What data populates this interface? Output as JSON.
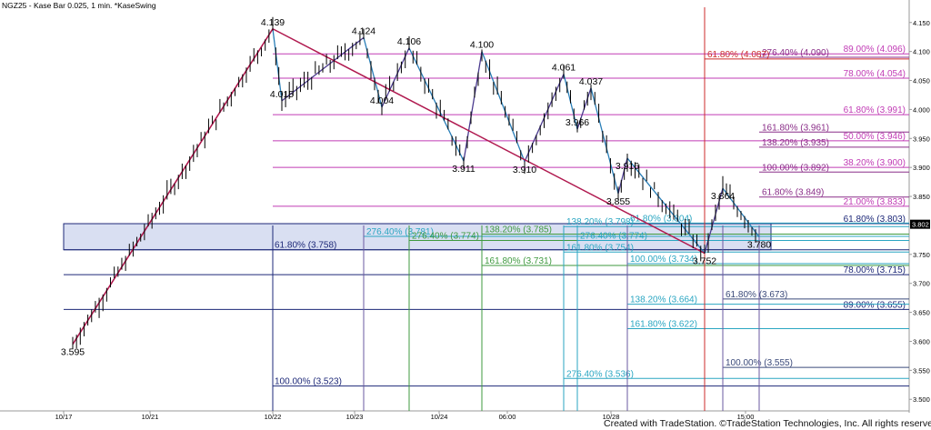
{
  "header": {
    "title": "NGZ25 - Kase Bar 0.025, 1 min. *KaseSwing"
  },
  "footer": {
    "credit": "Created with TradeStation. ©TradeStation Technologies, Inc. All rights reserved."
  },
  "colors": {
    "bar": "#000000",
    "swing_red": "#b0194f",
    "swing_blue": "#2a7fb8",
    "swing_purple": "#4b3b8f",
    "magenta": "#c13bb5",
    "green": "#3f9a3f",
    "teal": "#2aa6c2",
    "navy": "#1d2878",
    "red": "#cc2b2b",
    "zone_fill": "#d9dff2",
    "zone_stroke": "#1d2878",
    "last_price_tag": "#000000"
  },
  "chart_data": {
    "type": "ohlc",
    "instrument": "NGZ25",
    "y_axis_ticks": [
      "4.150",
      "4.100",
      "4.050",
      "4.000",
      "3.950",
      "3.900",
      "3.850",
      "3.802",
      "3.750",
      "3.700",
      "3.650",
      "3.600",
      "3.550",
      "3.500"
    ],
    "last_price": "3.802",
    "x_axis_ticks": [
      "10/17",
      "10/21",
      "10/22",
      "10/23",
      "10/24",
      "06:00",
      "10/28",
      "15:00"
    ],
    "swing_points": [
      {
        "value": "3.595",
        "t": 0.08
      },
      {
        "value": "4.139",
        "t": 0.3
      },
      {
        "value": "4.015",
        "t": 0.31
      },
      {
        "value": "4.124",
        "t": 0.4
      },
      {
        "value": "4.004",
        "t": 0.42
      },
      {
        "value": "4.106",
        "t": 0.45
      },
      {
        "value": "3.911",
        "t": 0.51
      },
      {
        "value": "4.100",
        "t": 0.53
      },
      {
        "value": "3.910",
        "t": 0.577
      },
      {
        "value": "4.061",
        "t": 0.62
      },
      {
        "value": "3.966",
        "t": 0.635
      },
      {
        "value": "4.037",
        "t": 0.65
      },
      {
        "value": "3.855",
        "t": 0.68
      },
      {
        "value": "3.916",
        "t": 0.69
      },
      {
        "value": "3.752",
        "t": 0.775
      },
      {
        "value": "3.864",
        "t": 0.795
      },
      {
        "value": "3.780",
        "t": 0.835
      }
    ],
    "fib_levels": [
      {
        "label": "89.00% (4.096)",
        "value": 4.096,
        "color": "magenta",
        "from_t": 0.3,
        "label_side": "right"
      },
      {
        "label": "78.00% (4.054)",
        "value": 4.054,
        "color": "magenta",
        "from_t": 0.3,
        "label_side": "right"
      },
      {
        "label": "61.80% (3.991)",
        "value": 3.991,
        "color": "magenta",
        "from_t": 0.3,
        "label_side": "right"
      },
      {
        "label": "50.00% (3.946)",
        "value": 3.946,
        "color": "magenta",
        "from_t": 0.3,
        "label_side": "right"
      },
      {
        "label": "38.20% (3.900)",
        "value": 3.9,
        "color": "magenta",
        "from_t": 0.3,
        "label_side": "right"
      },
      {
        "label": "21.00% (3.833)",
        "value": 3.833,
        "color": "magenta",
        "from_t": 0.3,
        "label_side": "right"
      },
      {
        "label": "276.40% (4.090)",
        "value": 4.09,
        "color": "purple",
        "from_t": 0.835,
        "label_side": "left"
      },
      {
        "label": "161.80% (3.961)",
        "value": 3.961,
        "color": "purple",
        "from_t": 0.835,
        "label_side": "left"
      },
      {
        "label": "138.20% (3.935)",
        "value": 3.935,
        "color": "purple",
        "from_t": 0.835,
        "label_side": "left"
      },
      {
        "label": "100.00% (3.892)",
        "value": 3.892,
        "color": "purple",
        "from_t": 0.835,
        "label_side": "left"
      },
      {
        "label": "61.80% (3.849)",
        "value": 3.849,
        "color": "purple",
        "from_t": 0.835,
        "label_side": "left"
      },
      {
        "label": "61.80% (4.087)",
        "value": 4.087,
        "color": "red",
        "from_t": 0.775,
        "label_side": "left"
      },
      {
        "label": "61.80% (3.803)",
        "value": 3.803,
        "color": "navy",
        "from_t": 0.3,
        "label_side": "right"
      },
      {
        "label": "78.00% (3.715)",
        "value": 3.715,
        "color": "navy",
        "from_t": 0.07,
        "label_side": "right"
      },
      {
        "label": "89.00% (3.655)",
        "value": 3.655,
        "color": "navy",
        "from_t": 0.07,
        "label_side": "right"
      },
      {
        "label": "61.80% (3.758)",
        "value": 3.758,
        "color": "navy",
        "from_t": 0.07,
        "label_side": "left_at_t",
        "label_t": 0.3
      },
      {
        "label": "100.00% (3.523)",
        "value": 3.523,
        "color": "navy",
        "from_t": 0.3,
        "label_side": "left_at_t",
        "label_t": 0.3
      },
      {
        "label": "61.80% (3.673)",
        "value": 3.673,
        "color": "slate",
        "from_t": 0.795,
        "label_side": "left"
      },
      {
        "label": "100.00% (3.555)",
        "value": 3.555,
        "color": "slate",
        "from_t": 0.795,
        "label_side": "left"
      },
      {
        "label": "276.40% (3.781)",
        "value": 3.781,
        "color": "teal",
        "from_t": 0.4,
        "label_side": "left"
      },
      {
        "label": "276.40% (3.774)",
        "value": 3.774,
        "color": "green",
        "from_t": 0.45,
        "label_side": "left"
      },
      {
        "label": "138.20% (3.785)",
        "value": 3.785,
        "color": "green",
        "from_t": 0.53,
        "label_side": "left"
      },
      {
        "label": "161.80% (3.731)",
        "value": 3.731,
        "color": "green",
        "from_t": 0.53,
        "label_side": "left"
      },
      {
        "label": "138.20% (3.798)",
        "value": 3.798,
        "color": "teal",
        "from_t": 0.62,
        "label_side": "left"
      },
      {
        "label": "276.40% (3.774)",
        "value": 3.774,
        "color": "teal",
        "from_t": 0.635,
        "label_side": "left"
      },
      {
        "label": "161.80% (3.754)",
        "value": 3.754,
        "color": "teal",
        "from_t": 0.62,
        "label_side": "left"
      },
      {
        "label": "276.40% (3.536)",
        "value": 3.536,
        "color": "teal",
        "from_t": 0.62,
        "label_side": "left"
      },
      {
        "label": "61.80% (3.804)",
        "value": 3.804,
        "color": "teal",
        "from_t": 0.69,
        "label_side": "left"
      },
      {
        "label": "100.00% (3.734)",
        "value": 3.734,
        "color": "teal",
        "from_t": 0.69,
        "label_side": "left"
      },
      {
        "label": "138.20% (3.664)",
        "value": 3.664,
        "color": "teal",
        "from_t": 0.69,
        "label_side": "left"
      },
      {
        "label": "161.80% (3.622)",
        "value": 3.622,
        "color": "teal",
        "from_t": 0.69,
        "label_side": "left"
      }
    ],
    "zone": {
      "low": 3.758,
      "high": 3.803
    },
    "grid": false,
    "ylim": [
      3.48,
      4.17
    ]
  }
}
